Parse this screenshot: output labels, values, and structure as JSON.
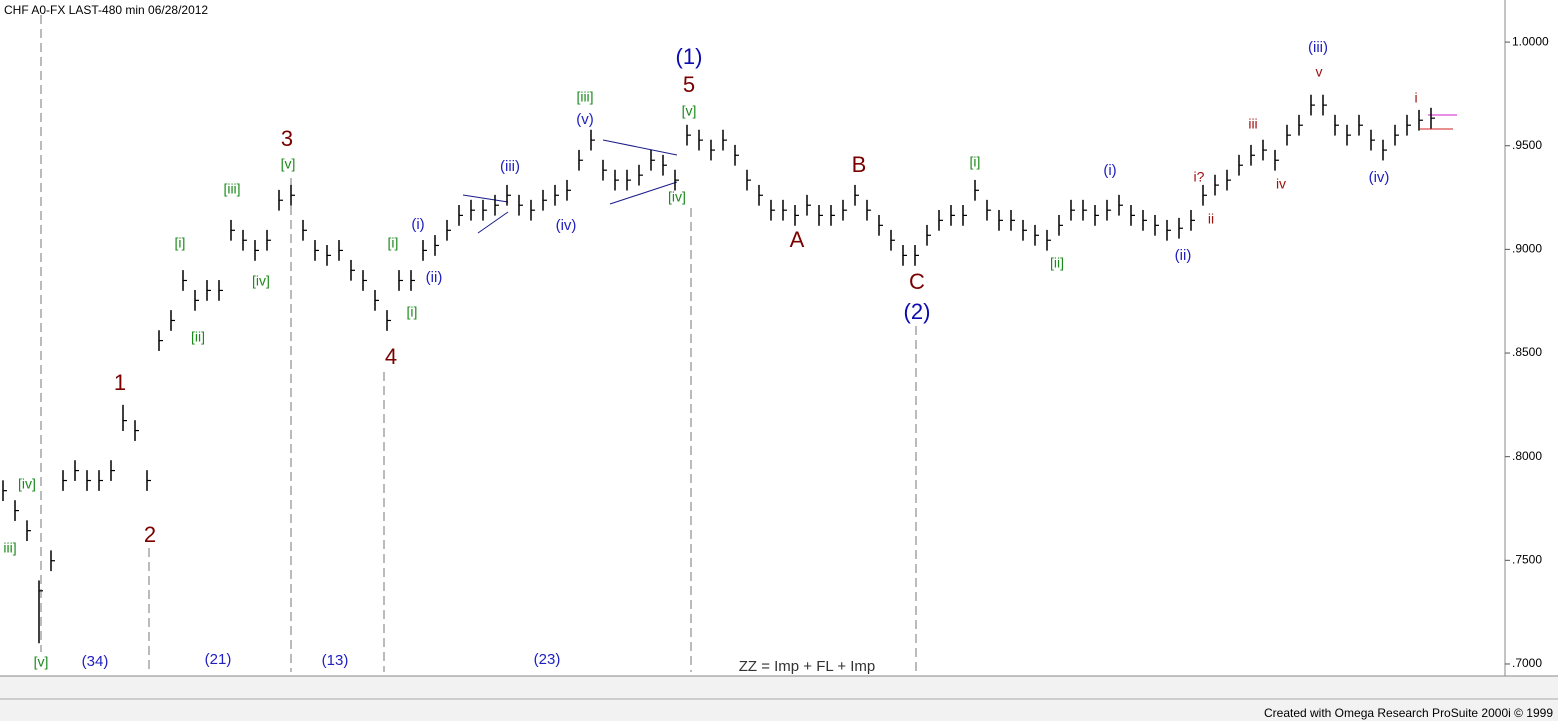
{
  "chart_data": {
    "type": "hlc",
    "title": "CHF A0-FX LAST-480 min   06/28/2012",
    "footer": "Created with Omega Research ProSuite 2000i © 1999",
    "color": "#000000",
    "ylim": [
      0.6942,
      1.0203
    ],
    "yticks": [
      {
        "value": 1.0,
        "label": "1.0000"
      },
      {
        "value": 0.95,
        "label": ".9500"
      },
      {
        "value": 0.9,
        "label": ".9000"
      },
      {
        "value": 0.85,
        "label": ".8500"
      },
      {
        "value": 0.8,
        "label": ".8000"
      },
      {
        "value": 0.75,
        "label": ".7500"
      },
      {
        "value": 0.7,
        "label": ".7000"
      }
    ],
    "close": [
      0.7836,
      0.774,
      0.7643,
      0.7353,
      0.7498,
      0.7885,
      0.7933,
      0.7885,
      0.7885,
      0.7933,
      0.8174,
      0.8126,
      0.7885,
      0.856,
      0.8657,
      0.885,
      0.8754,
      0.8802,
      0.8802,
      0.9092,
      0.9044,
      0.8995,
      0.9044,
      0.9237,
      0.9261,
      0.9092,
      0.8995,
      0.8971,
      0.8995,
      0.8899,
      0.885,
      0.8754,
      0.8657,
      0.885,
      0.885,
      0.8995,
      0.9019,
      0.9092,
      0.9164,
      0.9189,
      0.9189,
      0.9213,
      0.9261,
      0.9213,
      0.9189,
      0.9237,
      0.9261,
      0.9285,
      0.943,
      0.9527,
      0.9382,
      0.9334,
      0.9334,
      0.9358,
      0.943,
      0.9406,
      0.9334,
      0.9551,
      0.9527,
      0.9479,
      0.9527,
      0.9454,
      0.9334,
      0.9261,
      0.9189,
      0.9189,
      0.9164,
      0.9213,
      0.9164,
      0.9164,
      0.9189,
      0.9261,
      0.9189,
      0.9116,
      0.9044,
      0.8971,
      0.8971,
      0.9068,
      0.914,
      0.9164,
      0.9164,
      0.9285,
      0.9189,
      0.914,
      0.914,
      0.9092,
      0.9068,
      0.9044,
      0.9116,
      0.9189,
      0.9189,
      0.9164,
      0.9189,
      0.9213,
      0.9164,
      0.914,
      0.9116,
      0.9092,
      0.9102,
      0.914,
      0.9261,
      0.931,
      0.9334,
      0.9406,
      0.9454,
      0.9479,
      0.943,
      0.9551,
      0.9599,
      0.9696,
      0.9696,
      0.9599,
      0.9551,
      0.9599,
      0.9527,
      0.9479,
      0.9551,
      0.9599,
      0.9623,
      0.9633
    ],
    "high": [
      0.7886,
      0.779,
      0.7693,
      0.7403,
      0.7548,
      0.7935,
      0.7983,
      0.7935,
      0.7935,
      0.7983,
      0.825,
      0.8176,
      0.7935,
      0.861,
      0.8707,
      0.89,
      0.8804,
      0.8852,
      0.8852,
      0.9142,
      0.9094,
      0.9045,
      0.9094,
      0.9287,
      0.9311,
      0.9142,
      0.9045,
      0.9021,
      0.9045,
      0.8949,
      0.89,
      0.8804,
      0.8707,
      0.89,
      0.89,
      0.9045,
      0.9069,
      0.9142,
      0.9214,
      0.9239,
      0.9239,
      0.9263,
      0.9311,
      0.9263,
      0.9239,
      0.9287,
      0.9311,
      0.9335,
      0.948,
      0.9577,
      0.9432,
      0.9384,
      0.9384,
      0.9408,
      0.948,
      0.9456,
      0.9384,
      0.9601,
      0.9577,
      0.9529,
      0.9577,
      0.9504,
      0.9384,
      0.9311,
      0.9239,
      0.9239,
      0.9214,
      0.9263,
      0.9214,
      0.9214,
      0.9239,
      0.9311,
      0.9239,
      0.9166,
      0.9094,
      0.9021,
      0.9021,
      0.9118,
      0.919,
      0.9214,
      0.9214,
      0.9335,
      0.9239,
      0.919,
      0.919,
      0.9142,
      0.9118,
      0.9094,
      0.9166,
      0.9239,
      0.9239,
      0.9214,
      0.9239,
      0.9263,
      0.9214,
      0.919,
      0.9166,
      0.9142,
      0.9152,
      0.919,
      0.9311,
      0.936,
      0.9384,
      0.9456,
      0.9504,
      0.9529,
      0.948,
      0.9601,
      0.9649,
      0.9746,
      0.9746,
      0.9649,
      0.9601,
      0.9649,
      0.9577,
      0.9529,
      0.9601,
      0.9649,
      0.9673,
      0.9683
    ],
    "low": [
      0.7786,
      0.769,
      0.7593,
      0.71,
      0.7448,
      0.7835,
      0.7883,
      0.7835,
      0.7835,
      0.7883,
      0.8124,
      0.8076,
      0.7835,
      0.851,
      0.8607,
      0.88,
      0.8704,
      0.8752,
      0.8752,
      0.9042,
      0.8994,
      0.8945,
      0.8994,
      0.9187,
      0.9211,
      0.9042,
      0.8945,
      0.8921,
      0.8945,
      0.8849,
      0.88,
      0.8704,
      0.8607,
      0.88,
      0.88,
      0.8945,
      0.8969,
      0.9042,
      0.9114,
      0.9139,
      0.9139,
      0.9163,
      0.9211,
      0.9163,
      0.9139,
      0.9187,
      0.9211,
      0.9235,
      0.938,
      0.9477,
      0.9332,
      0.9284,
      0.9284,
      0.9308,
      0.938,
      0.9356,
      0.9284,
      0.9501,
      0.9477,
      0.9429,
      0.9477,
      0.9404,
      0.9284,
      0.9211,
      0.9139,
      0.9139,
      0.9114,
      0.9163,
      0.9114,
      0.9114,
      0.9139,
      0.9211,
      0.9139,
      0.9066,
      0.8994,
      0.8921,
      0.8921,
      0.9018,
      0.909,
      0.9114,
      0.9114,
      0.9235,
      0.9139,
      0.909,
      0.909,
      0.9042,
      0.9018,
      0.8994,
      0.9066,
      0.9139,
      0.9139,
      0.9114,
      0.9139,
      0.9163,
      0.9114,
      0.909,
      0.9066,
      0.9042,
      0.9052,
      0.909,
      0.9211,
      0.926,
      0.9284,
      0.9356,
      0.9404,
      0.9429,
      0.938,
      0.9501,
      0.9549,
      0.9646,
      0.9646,
      0.9549,
      0.9501,
      0.9549,
      0.9477,
      0.9429,
      0.9501,
      0.9549,
      0.9573,
      0.9583
    ],
    "annotations": [
      {
        "text": "[iv]",
        "color": "#1a8a1a"
      },
      {
        "text": "iii]",
        "color": "#1a8a1a"
      },
      {
        "text": "[v]",
        "color": "#1a8a1a"
      },
      {
        "text": "(34)",
        "color": "#2020c0"
      },
      {
        "text": "1",
        "color": "#7a0000"
      },
      {
        "text": "2",
        "color": "#7a0000"
      },
      {
        "text": "(21)",
        "color": "#2020c0"
      },
      {
        "text": "[i]",
        "color": "#1a8a1a"
      },
      {
        "text": "[ii]",
        "color": "#1a8a1a"
      },
      {
        "text": "[iii]",
        "color": "#1a8a1a"
      },
      {
        "text": "[iv]",
        "color": "#1a8a1a"
      },
      {
        "text": "3",
        "color": "#7a0000"
      },
      {
        "text": "[v]",
        "color": "#1a8a1a"
      },
      {
        "text": "(13)",
        "color": "#2020c0"
      },
      {
        "text": "4",
        "color": "#7a0000"
      },
      {
        "text": "[i]",
        "color": "#1a8a1a"
      },
      {
        "text": "(i)",
        "color": "#2020c0"
      },
      {
        "text": "(ii)",
        "color": "#2020c0"
      },
      {
        "text": "[i]",
        "color": "#1a8a1a"
      },
      {
        "text": "(iii)",
        "color": "#2020c0"
      },
      {
        "text": "(iv)",
        "color": "#2020c0"
      },
      {
        "text": "(v)",
        "color": "#2020c0"
      },
      {
        "text": "[iii]",
        "color": "#1a8a1a"
      },
      {
        "text": "(23)",
        "color": "#2020c0"
      },
      {
        "text": "(1)",
        "color": "#0a0ab0"
      },
      {
        "text": "5",
        "color": "#7a0000"
      },
      {
        "text": "[v]",
        "color": "#1a8a1a"
      },
      {
        "text": "[iv]",
        "color": "#1a8a1a"
      },
      {
        "text": "ZZ = Imp + FL + Imp",
        "color": "#333333"
      },
      {
        "text": "A",
        "color": "#7a0000"
      },
      {
        "text": "B",
        "color": "#7a0000"
      },
      {
        "text": "C",
        "color": "#7a0000"
      },
      {
        "text": "(2)",
        "color": "#0a0ab0"
      },
      {
        "text": "[i]",
        "color": "#1a8a1a"
      },
      {
        "text": "[ii]",
        "color": "#1a8a1a"
      },
      {
        "text": "(i)",
        "color": "#2020c0"
      },
      {
        "text": "(ii)",
        "color": "#2020c0"
      },
      {
        "text": "i?",
        "color": "#a01010"
      },
      {
        "text": "ii",
        "color": "#a01010"
      },
      {
        "text": "iii",
        "color": "#a01010"
      },
      {
        "text": "iv",
        "color": "#a01010"
      },
      {
        "text": "(iii)",
        "color": "#2020c0"
      },
      {
        "text": "v",
        "color": "#a01010"
      },
      {
        "text": "(iv)",
        "color": "#2020c0"
      },
      {
        "text": "i",
        "color": "#a01010"
      }
    ]
  }
}
